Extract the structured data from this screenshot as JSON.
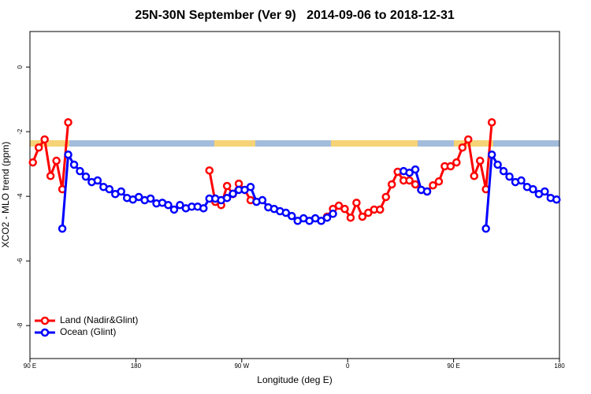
{
  "chart_data": {
    "type": "line",
    "title": "25N-30N September (Ver 9)   2014-09-06 to 2018-12-31",
    "xlabel": "Longitude (deg E)",
    "ylabel": "XCO2 - MLO trend (ppm)",
    "x": [
      92.5,
      97.5,
      102.5,
      107.5,
      112.5,
      117.5,
      122.5,
      127.5,
      132.5,
      137.5,
      142.5,
      147.5,
      152.5,
      157.5,
      162.5,
      167.5,
      172.5,
      177.5,
      182.5,
      187.5,
      192.5,
      197.5,
      202.5,
      207.5,
      212.5,
      217.5,
      222.5,
      227.5,
      232.5,
      237.5,
      242.5,
      247.5,
      252.5,
      257.5,
      262.5,
      267.5,
      272.5,
      277.5,
      282.5,
      287.5,
      292.5,
      297.5,
      302.5,
      307.5,
      312.5,
      317.5,
      322.5,
      327.5,
      332.5,
      337.5,
      342.5,
      347.5,
      352.5,
      357.5,
      362.5,
      367.5,
      372.5,
      377.5,
      382.5,
      387.5,
      392.5,
      397.5,
      402.5,
      407.5,
      412.5,
      417.5,
      422.5,
      427.5,
      432.5,
      437.5,
      442.5,
      447.5,
      452.5,
      457.5,
      462.5,
      467.5,
      472.5,
      477.5,
      482.5,
      487.5,
      492.5,
      497.5,
      502.5,
      507.5,
      512.5,
      517.5,
      522.5,
      527.5,
      532.5,
      537.5
    ],
    "series": [
      {
        "name": "Land (Nadir&Glint)",
        "color": "#ff0000",
        "values": [
          -2.95,
          -2.49,
          -2.24,
          -3.37,
          -2.9,
          -3.78,
          -1.71,
          null,
          null,
          null,
          null,
          null,
          null,
          null,
          null,
          null,
          null,
          null,
          null,
          null,
          null,
          null,
          null,
          null,
          null,
          null,
          null,
          null,
          null,
          null,
          -3.2,
          -4.17,
          -4.27,
          -3.68,
          -3.93,
          -3.61,
          -3.8,
          -4.12,
          null,
          null,
          null,
          null,
          null,
          null,
          null,
          null,
          null,
          null,
          null,
          null,
          -4.63,
          -4.39,
          -4.29,
          -4.39,
          -4.66,
          -4.2,
          -4.63,
          -4.51,
          -4.41,
          -4.41,
          -4.02,
          -3.63,
          -3.24,
          -3.51,
          -3.51,
          -3.63,
          -3.8,
          -3.85,
          -3.66,
          -3.54,
          -3.07,
          -3.07,
          -2.95,
          -2.49,
          -2.24,
          -3.37,
          -2.9,
          -3.78,
          -1.71,
          null,
          null,
          null,
          null,
          null,
          null,
          null,
          null,
          null,
          null,
          null
        ]
      },
      {
        "name": "Ocean (Glint)",
        "color": "#0000ff",
        "values": [
          null,
          null,
          null,
          null,
          null,
          -5.0,
          -2.71,
          -3.02,
          -3.22,
          -3.39,
          -3.56,
          -3.51,
          -3.71,
          -3.78,
          -3.93,
          -3.85,
          -4.05,
          -4.1,
          -4.02,
          -4.12,
          -4.07,
          -4.22,
          -4.2,
          -4.27,
          -4.41,
          -4.27,
          -4.37,
          -4.32,
          -4.32,
          -4.37,
          -4.07,
          -4.07,
          -4.12,
          -4.05,
          -3.92,
          -3.8,
          -3.8,
          -3.71,
          -4.17,
          -4.12,
          -4.34,
          -4.39,
          -4.46,
          -4.51,
          -4.61,
          -4.76,
          -4.68,
          -4.76,
          -4.68,
          -4.76,
          -4.66,
          -4.54,
          null,
          null,
          null,
          null,
          null,
          null,
          null,
          null,
          null,
          null,
          null,
          -3.22,
          -3.27,
          -3.17,
          -3.8,
          -3.85,
          null,
          null,
          null,
          null,
          null,
          null,
          null,
          null,
          null,
          -5.0,
          -2.71,
          -3.02,
          -3.22,
          -3.39,
          -3.56,
          -3.51,
          -3.71,
          -3.78,
          -3.93,
          -3.85,
          -4.05,
          -4.1
        ]
      }
    ],
    "xlim": [
      90,
      540
    ],
    "ylim": [
      -9.02,
      1.1
    ],
    "xticks": [
      {
        "value": 90,
        "label": "90 E"
      },
      180,
      {
        "value": 270,
        "label": "90 W"
      },
      {
        "value": 360,
        "label": "0"
      },
      {
        "value": 450,
        "label": "90 E"
      },
      {
        "value": 540,
        "label": "180"
      }
    ],
    "yticks": [
      0,
      -2,
      -4,
      -6,
      -8
    ],
    "grid": false,
    "legend": "bottom-left"
  }
}
